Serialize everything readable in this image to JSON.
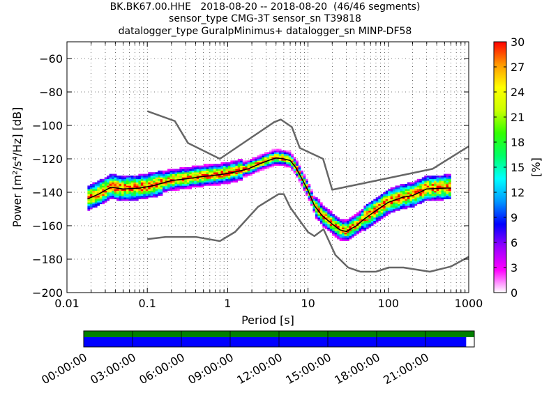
{
  "title_lines": [
    "BK.BK67.00.HHE   2018-08-20 -- 2018-08-20  (46/46 segments)",
    "sensor_type CMG-3T sensor_sn T39818",
    "datalogger_type GuralpMinimus+ datalogger_sn MINP-DF58"
  ],
  "chart_data": [
    {
      "type": "heatmap",
      "xlabel": "Period [s]",
      "ylabel": "Power [m²/s⁴/Hz] [dB]",
      "xscale": "log",
      "xlim": [
        0.01,
        1000
      ],
      "ylim": [
        -200,
        -50
      ],
      "xticks": [
        0.01,
        0.1,
        1,
        10,
        100,
        1000
      ],
      "xtick_labels": [
        "0.01",
        "0.1",
        "1",
        "10",
        "100",
        "1000"
      ],
      "yticks": [
        -200,
        -180,
        -160,
        -140,
        -120,
        -100,
        -80,
        -60
      ],
      "grid": true,
      "colorbar": {
        "label": "[%]",
        "range": [
          0,
          30
        ],
        "ticks": [
          0,
          3,
          6,
          9,
          12,
          15,
          18,
          21,
          24,
          27,
          30
        ],
        "colormap": [
          "#ffffff",
          "#ff00ff",
          "#9900ff",
          "#0000ff",
          "#0099ff",
          "#00ffff",
          "#00ff66",
          "#33ff00",
          "#ccff00",
          "#ffff00",
          "#ff9900",
          "#ff0000"
        ]
      },
      "series": [
        {
          "role": "new-high-noise-model",
          "color": "#666666",
          "x": [
            0.1,
            0.22,
            0.32,
            0.8,
            3.8,
            4.6,
            6.3,
            7.9,
            15.4,
            20,
            354.8,
            1000
          ],
          "y": [
            -91.5,
            -97.4,
            -110.5,
            -120,
            -98,
            -96.5,
            -101,
            -113.5,
            -120,
            -138.5,
            -126,
            -112.5
          ]
        },
        {
          "role": "new-low-noise-model",
          "color": "#666666",
          "x": [
            0.1,
            0.17,
            0.4,
            0.8,
            1.24,
            2.4,
            4.3,
            5,
            6,
            10,
            12,
            15.6,
            21.9,
            31.6,
            45,
            70,
            101,
            154,
            328,
            600,
            1000
          ],
          "y": [
            -168,
            -166.7,
            -166.7,
            -169.2,
            -163.7,
            -148.6,
            -141.1,
            -141.1,
            -149,
            -163.8,
            -166.2,
            -162.1,
            -177.5,
            -185,
            -187.5,
            -187.5,
            -185,
            -185,
            -187.5,
            -184.4,
            -178.6
          ]
        },
        {
          "role": "mode",
          "color": "#000000",
          "x": [
            0.018,
            0.025,
            0.035,
            0.05,
            0.08,
            0.12,
            0.2,
            0.3,
            0.5,
            0.8,
            1.2,
            1.8,
            2.5,
            3.2,
            4,
            5,
            6,
            7,
            8,
            10,
            12,
            15,
            20,
            25,
            30,
            40,
            50,
            70,
            100,
            150,
            200,
            300,
            500,
            600
          ],
          "y": [
            -144,
            -141,
            -137,
            -138,
            -137.5,
            -136,
            -133,
            -132,
            -130.5,
            -129.5,
            -128,
            -126,
            -123,
            -121,
            -119.5,
            -120,
            -121,
            -125,
            -130,
            -139,
            -148,
            -154,
            -159,
            -162.5,
            -163.5,
            -160,
            -156,
            -151,
            -146,
            -143,
            -142,
            -138,
            -137.5,
            -137.5
          ]
        }
      ]
    },
    {
      "type": "timeline",
      "xticks": [
        "00:00:00",
        "03:00:00",
        "06:00:00",
        "09:00:00",
        "12:00:00",
        "15:00:00",
        "18:00:00",
        "21:00:00"
      ],
      "data_coverage_color": "#008000",
      "used_coverage_color": "#0000ff",
      "data_coverage": [
        0,
        24
      ],
      "used_coverage": [
        0,
        23.5
      ]
    }
  ]
}
